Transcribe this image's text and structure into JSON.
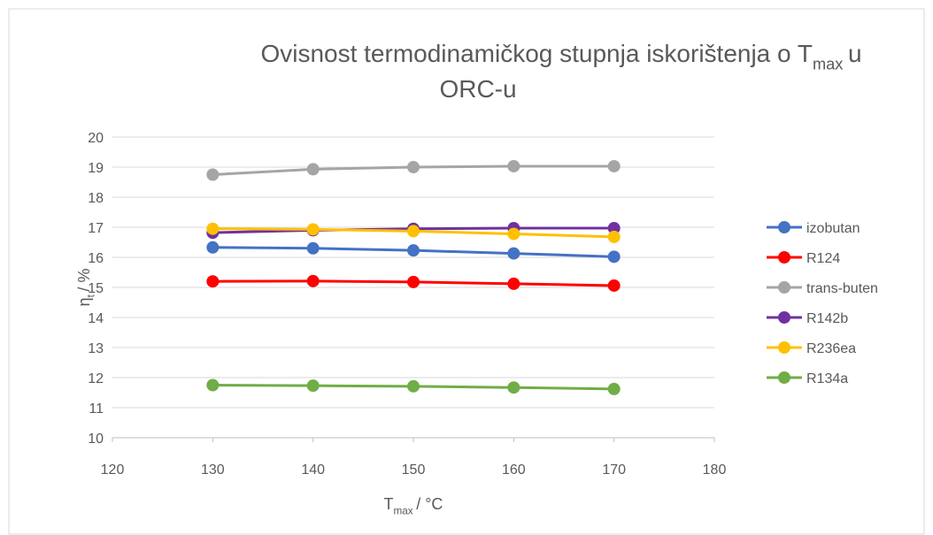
{
  "chart_data": {
    "type": "line",
    "title": {
      "line1": [
        "Ovisnost termodinamičkog stupnja iskorištenja o T",
        "max",
        "u"
      ],
      "line2": "ORC-u"
    },
    "x_label": [
      "T",
      "max",
      "/ °C"
    ],
    "y_label": [
      "η",
      "t",
      "/ %"
    ],
    "x": [
      130,
      140,
      150,
      160,
      170
    ],
    "xlim": [
      120,
      180
    ],
    "xticks": [
      120,
      130,
      140,
      150,
      160,
      170,
      180
    ],
    "ylim": [
      10,
      20
    ],
    "yticks": [
      10,
      11,
      12,
      13,
      14,
      15,
      16,
      17,
      18,
      19,
      20
    ],
    "grid": true,
    "legend": "right",
    "series": [
      {
        "name": "izobutan",
        "color": "#4472c4",
        "values": [
          16.33,
          16.3,
          16.23,
          16.13,
          16.02
        ]
      },
      {
        "name": "R124",
        "color": "#ff0000",
        "values": [
          15.2,
          15.21,
          15.18,
          15.12,
          15.06
        ]
      },
      {
        "name": "trans-buten",
        "color": "#a5a5a5",
        "values": [
          18.75,
          18.93,
          19.0,
          19.03,
          19.03
        ]
      },
      {
        "name": "R142b",
        "color": "#7030a0",
        "values": [
          16.82,
          16.9,
          16.95,
          16.97,
          16.97
        ]
      },
      {
        "name": "R236ea",
        "color": "#ffc000",
        "values": [
          16.95,
          16.93,
          16.87,
          16.78,
          16.68
        ]
      },
      {
        "name": "R134a",
        "color": "#70ad47",
        "values": [
          11.75,
          11.73,
          11.71,
          11.67,
          11.62
        ]
      }
    ]
  }
}
